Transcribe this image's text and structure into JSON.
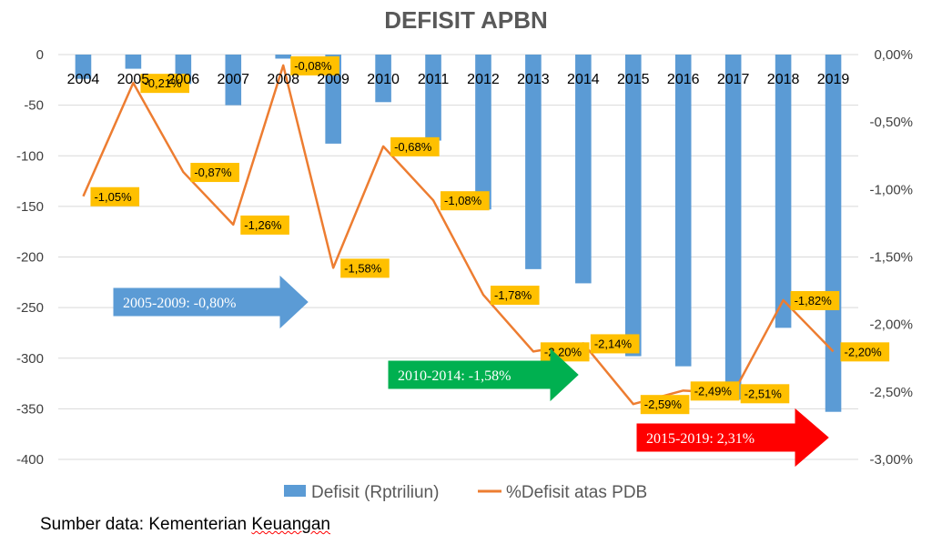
{
  "chart_data": {
    "type": "bar",
    "title": "DEFISIT APBN",
    "categories": [
      "2004",
      "2005",
      "2006",
      "2007",
      "2008",
      "2009",
      "2010",
      "2011",
      "2012",
      "2013",
      "2014",
      "2015",
      "2016",
      "2017",
      "2018",
      "2019"
    ],
    "series": [
      {
        "name": "Defisit (Rptriliun)",
        "type": "bar",
        "axis": "left",
        "color": "#5B9BD5",
        "values": [
          -24,
          -14,
          -29,
          -50,
          -4,
          -88,
          -47,
          -85,
          -153,
          -212,
          -226,
          -298,
          -308,
          -341,
          -270,
          -353
        ]
      },
      {
        "name": "%Defisit atas PDB",
        "type": "line",
        "axis": "right",
        "color": "#ED7D31",
        "values": [
          -1.05,
          -0.21,
          -0.87,
          -1.26,
          -0.08,
          -1.58,
          -0.68,
          -1.08,
          -1.78,
          -2.2,
          -2.14,
          -2.59,
          -2.49,
          -2.51,
          -1.82,
          -2.2
        ],
        "labels": [
          "-1,05%",
          "-0,21%",
          "-0,87%",
          "-1,26%",
          "-0,08%",
          "-1,58%",
          "-0,68%",
          "-1,08%",
          "-1,78%",
          "-2,20%",
          "-2,14%",
          "-2,59%",
          "-2,49%",
          "-2,51%",
          "-1,82%",
          "-2,20%"
        ]
      }
    ],
    "left_axis": {
      "min": -400,
      "max": 0,
      "step": 50,
      "ticks": [
        "0",
        "-50",
        "-100",
        "-150",
        "-200",
        "-250",
        "-300",
        "-350",
        "-400"
      ]
    },
    "right_axis": {
      "min": -3.0,
      "max": 0.0,
      "step": 0.5,
      "ticks": [
        "0,00%",
        "-0,50%",
        "-1,00%",
        "-1,50%",
        "-2,00%",
        "-2,50%",
        "-3,00%"
      ]
    },
    "grid": true,
    "legend_position": "bottom",
    "annotations": [
      {
        "text": "2005-2009: -0,80%",
        "color": "#5B9BD5"
      },
      {
        "text": "2010-2014: -1,58%",
        "color": "#00B050"
      },
      {
        "text": "2015-2019: 2,31%",
        "color": "#FF0000"
      }
    ],
    "label_fill": "#FFC000"
  },
  "source": {
    "prefix": "Sumber data: Kementerian ",
    "underlined": "Keuangan"
  }
}
